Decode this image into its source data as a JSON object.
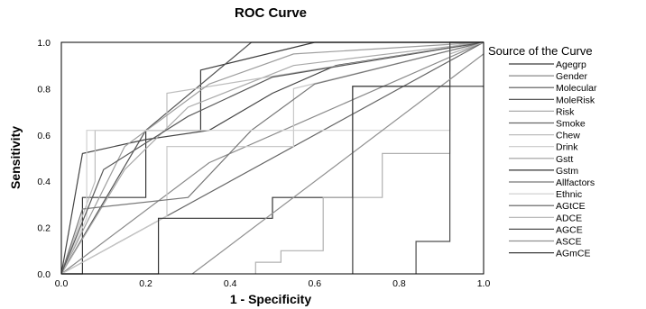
{
  "chart_data": {
    "type": "line",
    "title": "ROC Curve",
    "xlabel": "1 - Specificity",
    "ylabel": "Sensitivity",
    "xlim": [
      0.0,
      1.0
    ],
    "ylim": [
      0.0,
      1.0
    ],
    "x_ticks": [
      "0.0",
      "0.2",
      "0.4",
      "0.6",
      "0.8",
      "1.0"
    ],
    "y_ticks": [
      "0.0",
      "0.2",
      "0.4",
      "0.6",
      "0.8",
      "1.0"
    ],
    "grid": false,
    "legend_title": "Source of the Curve",
    "legend_position": "right",
    "series": [
      {
        "name": "Agegrp",
        "color": "#3a3a3a",
        "x": [
          0,
          0.05,
          0.05,
          0.2,
          0.2,
          0.33,
          0.33,
          0.6,
          1
        ],
        "y": [
          0,
          0,
          0.33,
          0.33,
          0.62,
          0.62,
          0.88,
          1,
          1
        ]
      },
      {
        "name": "Gender",
        "color": "#8a8a8a",
        "x": [
          0,
          0.35,
          1
        ],
        "y": [
          0,
          0.48,
          1
        ]
      },
      {
        "name": "Molecular",
        "color": "#555555",
        "x": [
          0,
          0.2,
          0.2,
          0.45,
          1
        ],
        "y": [
          0,
          0.62,
          0.62,
          1,
          1
        ]
      },
      {
        "name": "MoleRisk",
        "color": "#444444",
        "x": [
          0,
          0.05,
          0.2,
          0.35,
          0.35,
          0.5,
          0.65,
          1
        ],
        "y": [
          0,
          0.52,
          0.58,
          0.62,
          0.62,
          0.78,
          0.9,
          1
        ]
      },
      {
        "name": "Risk",
        "color": "#aaaaaa",
        "x": [
          0,
          0.15,
          0.3,
          0.55,
          1
        ],
        "y": [
          0,
          0.45,
          0.72,
          0.9,
          1
        ]
      },
      {
        "name": "Smoke",
        "color": "#666666",
        "x": [
          0,
          1
        ],
        "y": [
          0,
          1
        ]
      },
      {
        "name": "Chew",
        "color": "#bdbdbd",
        "x": [
          0,
          0.08,
          0.08,
          0.25,
          0.25,
          1
        ],
        "y": [
          0,
          0.4,
          0.62,
          0.62,
          0.78,
          1
        ]
      },
      {
        "name": "Drink",
        "color": "#c8c8c8",
        "x": [
          0,
          0.25,
          0.25,
          0.55,
          0.55,
          1
        ],
        "y": [
          0,
          0.25,
          0.55,
          0.55,
          0.8,
          1
        ]
      },
      {
        "name": "Gstt",
        "color": "#9e9e9e",
        "x": [
          0,
          0.15,
          0.35,
          0.55,
          1
        ],
        "y": [
          0,
          0.55,
          0.82,
          0.95,
          1
        ]
      },
      {
        "name": "Gstm",
        "color": "#333333",
        "x": [
          0,
          0.23,
          0.23,
          0.5,
          0.5,
          0.69,
          0.69,
          0.92,
          0.92,
          1
        ],
        "y": [
          0,
          0,
          0.24,
          0.24,
          0.33,
          0.33,
          0.81,
          0.81,
          1,
          1
        ]
      },
      {
        "name": "Allfactors",
        "color": "#777777",
        "x": [
          0,
          0.05,
          0.3,
          0.45,
          0.6,
          1
        ],
        "y": [
          0,
          0.28,
          0.33,
          0.62,
          0.82,
          1
        ]
      },
      {
        "name": "Ethnic",
        "color": "#d0d0d0",
        "x": [
          0,
          0.06,
          0.06,
          0.92,
          0.92,
          1
        ],
        "y": [
          0,
          0.24,
          0.62,
          0.62,
          1,
          1
        ]
      },
      {
        "name": "AGtCE",
        "color": "#5a5a5a",
        "x": [
          0,
          0.1,
          0.3,
          0.5,
          1
        ],
        "y": [
          0,
          0.45,
          0.68,
          0.85,
          1
        ]
      },
      {
        "name": "ADCE",
        "color": "#b0b0b0",
        "x": [
          0.46,
          0.46,
          0.52,
          0.52,
          0.62,
          0.62,
          0.76,
          0.76,
          0.92,
          0.92,
          1
        ],
        "y": [
          0,
          0.05,
          0.05,
          0.1,
          0.1,
          0.33,
          0.33,
          0.52,
          0.52,
          0.95,
          1
        ]
      },
      {
        "name": "AGCE",
        "color": "#4d4d4d",
        "x": [
          0.84,
          0.84,
          0.92,
          0.92,
          1
        ],
        "y": [
          0,
          0.14,
          0.14,
          1,
          1
        ]
      },
      {
        "name": "ASCE",
        "color": "#909090",
        "x": [
          0.31,
          1
        ],
        "y": [
          0,
          0.95
        ]
      },
      {
        "name": "AGmCE",
        "color": "#3c3c3c",
        "x": [
          0.69,
          0.69,
          1
        ],
        "y": [
          0,
          0.81,
          0.81
        ]
      }
    ]
  }
}
